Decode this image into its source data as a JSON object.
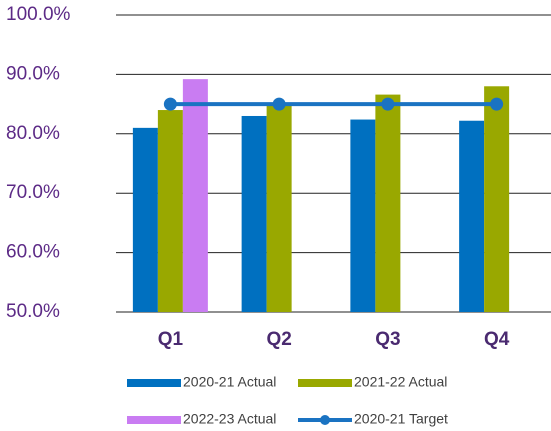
{
  "chart_data": {
    "type": "bar",
    "categories": [
      "Q1",
      "Q2",
      "Q3",
      "Q4"
    ],
    "series": [
      {
        "name": "2020-21 Actual",
        "color": "#0070c0",
        "values": [
          81.0,
          83.0,
          82.4,
          82.2
        ]
      },
      {
        "name": "2021-22 Actual",
        "color": "#99a800",
        "values": [
          84.0,
          85.0,
          86.6,
          88.0
        ]
      },
      {
        "name": "2022-23 Actual",
        "color": "#c97cf2",
        "values": [
          89.2,
          null,
          null,
          null
        ]
      },
      {
        "name": "2020-21 Target",
        "color": "#1a73c2",
        "type": "line",
        "values": [
          85,
          85,
          85,
          85
        ]
      }
    ],
    "ylim": [
      50,
      100
    ],
    "yticks": [
      {
        "value": 50,
        "label": "50.0%"
      },
      {
        "value": 60,
        "label": "60.0%"
      },
      {
        "value": 70,
        "label": "70.0%"
      },
      {
        "value": 80,
        "label": "80.0%"
      },
      {
        "value": 90,
        "label": "90.0%"
      },
      {
        "value": 100,
        "label": "100.0%"
      }
    ],
    "grid": true,
    "legend": "bottom"
  }
}
